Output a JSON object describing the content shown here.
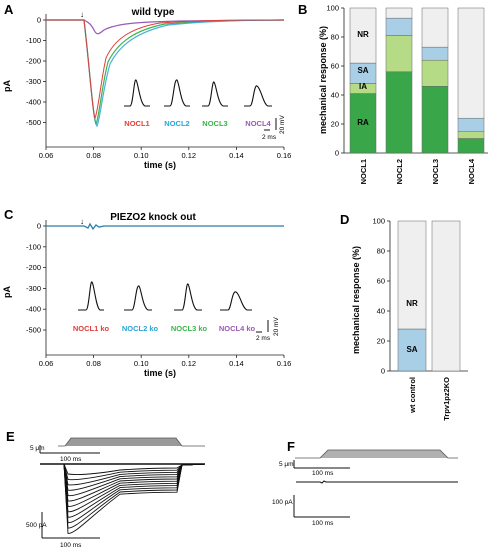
{
  "panels": {
    "A": {
      "letter": "A",
      "title": "wild type",
      "ylabel": "pA",
      "xlabel": "time (s)",
      "yticks": [
        "0",
        "-100",
        "-200",
        "-300",
        "-400",
        "-500"
      ],
      "xticks": [
        "0.06",
        "0.08",
        "0.10",
        "0.12",
        "0.14",
        "0.16"
      ],
      "trace_labels": [
        "NOCL1",
        "NOCL2",
        "NOCL3",
        "NOCL4"
      ],
      "trace_colors": [
        "#e0403a",
        "#2aa3d8",
        "#3bb34a",
        "#9b59b6"
      ],
      "scale_x": "2 ms",
      "scale_y": "20 mV"
    },
    "B": {
      "letter": "B",
      "ylabel": "mechanical response (%)",
      "yticks": [
        "0",
        "20",
        "40",
        "60",
        "80",
        "100"
      ],
      "categories": [
        "NOCL1",
        "NOCL2",
        "NOCL3",
        "NOCL4"
      ],
      "segment_labels": [
        "NR",
        "SA",
        "IA",
        "RA"
      ]
    },
    "C": {
      "letter": "C",
      "title": "PIEZO2 knock out",
      "ylabel": "pA",
      "xlabel": "time (s)",
      "yticks": [
        "0",
        "-100",
        "-200",
        "-300",
        "-400",
        "-500"
      ],
      "xticks": [
        "0.06",
        "0.08",
        "0.10",
        "0.12",
        "0.14",
        "0.16"
      ],
      "trace_labels": [
        "NOCL1 ko",
        "NOCL2 ko",
        "NOCL3 ko",
        "NOCL4 ko"
      ],
      "scale_x": "2 ms",
      "scale_y": "20 mV"
    },
    "D": {
      "letter": "D",
      "ylabel": "mechanical response (%)",
      "yticks": [
        "0",
        "20",
        "40",
        "60",
        "80",
        "100"
      ],
      "categories": [
        "wt control",
        "Trpv1pz2KO"
      ],
      "segment_labels": [
        "NR",
        "SA"
      ]
    },
    "E": {
      "letter": "E",
      "scale_um": "5 μm",
      "scale_ms_top": "100 ms",
      "scale_pa": "500 pA",
      "scale_ms_bottom": "100 ms"
    },
    "F": {
      "letter": "F",
      "scale_um": "5 μm",
      "scale_ms_top": "100 ms",
      "scale_pa": "100 pA",
      "scale_ms_bottom": "100 ms"
    }
  },
  "colors": {
    "NR": "#efefef",
    "SA": "#a8cfe6",
    "IA": "#b6db86",
    "RA": "#3aa64a"
  },
  "chart_data": [
    {
      "type": "bar",
      "stacked": true,
      "categories": [
        "NOCL1",
        "NOCL2",
        "NOCL3",
        "NOCL4"
      ],
      "series": [
        {
          "name": "RA",
          "values": [
            41,
            56,
            46,
            10
          ]
        },
        {
          "name": "IA",
          "values": [
            7,
            25,
            18,
            5
          ]
        },
        {
          "name": "SA",
          "values": [
            14,
            12,
            9,
            9
          ]
        },
        {
          "name": "NR",
          "values": [
            38,
            7,
            27,
            76
          ]
        }
      ],
      "ylabel": "mechanical response (%)",
      "ylim": [
        0,
        100
      ]
    },
    {
      "type": "bar",
      "stacked": true,
      "categories": [
        "wt control",
        "Trpv1pz2KO"
      ],
      "series": [
        {
          "name": "SA",
          "values": [
            28,
            0
          ]
        },
        {
          "name": "NR",
          "values": [
            72,
            100
          ]
        }
      ],
      "ylabel": "mechanical response (%)",
      "ylim": [
        0,
        100
      ]
    }
  ]
}
